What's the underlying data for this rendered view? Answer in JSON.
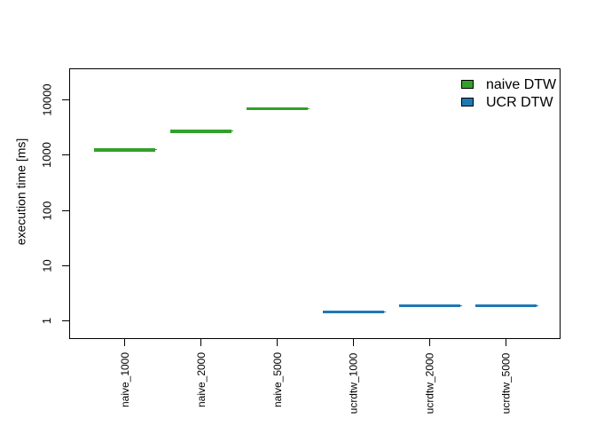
{
  "chart_data": {
    "type": "bar",
    "variant": "horizontal-segments-log-scale",
    "title": "",
    "xlabel": "",
    "ylabel": "execution time [ms]",
    "yscale": "log",
    "ylim": [
      0.5,
      37000
    ],
    "yticks": [
      1,
      10,
      100,
      1000,
      10000
    ],
    "ytick_labels": [
      "1",
      "10",
      "100",
      "1000",
      "10000"
    ],
    "categories": [
      "naive_1000",
      "naive_2000",
      "naive_5000",
      "ucrdtw_1000",
      "ucrdtw_2000",
      "ucrdtw_5000"
    ],
    "series": [
      {
        "name": "naive DTW",
        "color": "#33a02c",
        "values": [
          1250,
          2700,
          6950,
          null,
          null,
          null
        ]
      },
      {
        "name": "UCR DTW",
        "color": "#1f78b4",
        "values": [
          null,
          null,
          null,
          1.45,
          1.9,
          1.9
        ]
      }
    ],
    "legend": {
      "position": "top-right",
      "entries": [
        {
          "label": "naive DTW",
          "color": "#33a02c"
        },
        {
          "label": "UCR DTW",
          "color": "#1f78b4"
        }
      ]
    },
    "grid": false,
    "axis_color": "#000000",
    "text_color": "#000000",
    "background_color": "#ffffff"
  }
}
